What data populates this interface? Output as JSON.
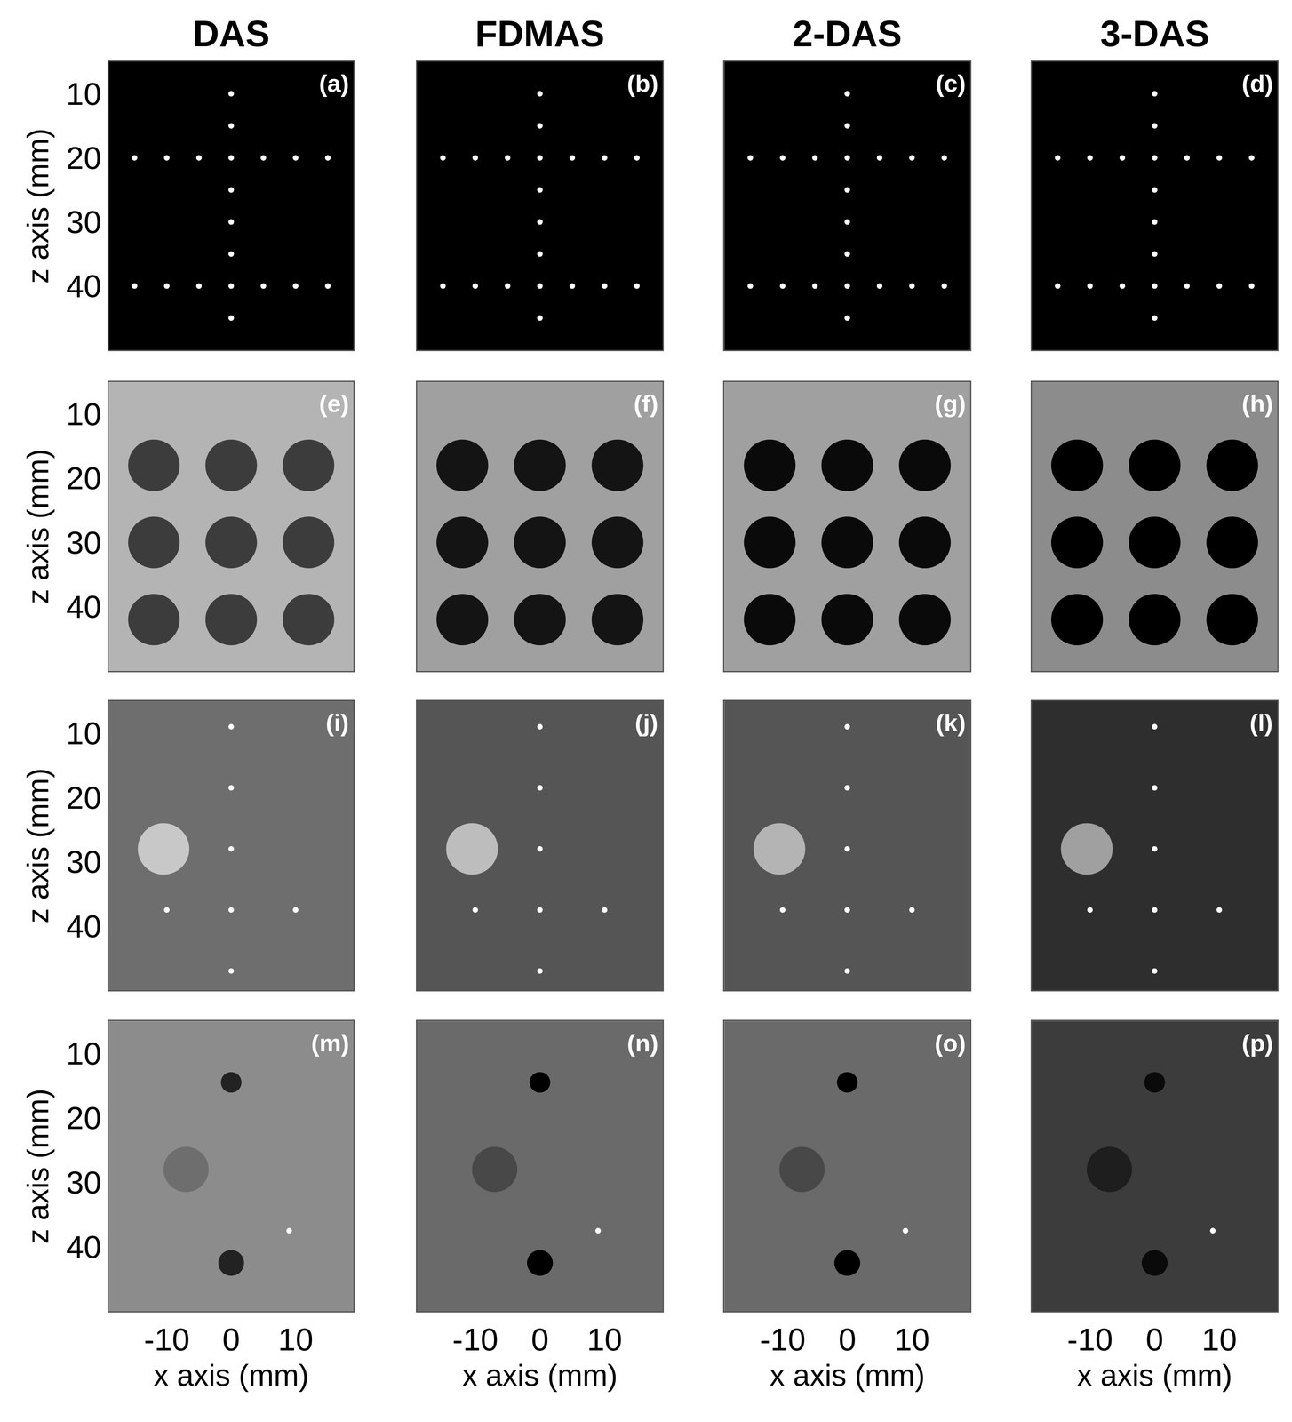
{
  "chart_data": [
    {
      "type": "image",
      "title": "DAS",
      "label": "(a)",
      "ylabel": "z axis (mm)",
      "xlim": [
        -19,
        19
      ],
      "ylim": [
        50,
        5
      ],
      "xticks": [
        -10,
        0,
        10
      ],
      "yticks": [
        10,
        20,
        30,
        40
      ],
      "tick_labels": "y",
      "color": "#000000",
      "series": [
        {
          "type": "scatter",
          "color": "#ffffff",
          "x": [
            0,
            0,
            0,
            0,
            0,
            0,
            0,
            0,
            -15,
            -10,
            -5,
            5,
            10,
            15,
            -15,
            -10,
            -5,
            5,
            10,
            15
          ],
          "values": [
            10,
            15,
            20,
            25,
            30,
            35,
            40,
            45,
            20,
            20,
            20,
            20,
            20,
            20,
            40,
            40,
            40,
            40,
            40,
            40
          ]
        }
      ]
    },
    {
      "type": "image",
      "title": "FDMAS",
      "label": "(b)",
      "xlim": [
        -19,
        19
      ],
      "ylim": [
        50,
        5
      ],
      "xticks": [
        -10,
        0,
        10
      ],
      "yticks": [
        10,
        20,
        30,
        40
      ],
      "tick_labels": false,
      "color": "#000000",
      "series": [
        {
          "type": "scatter",
          "color": "#ffffff",
          "x": [
            0,
            0,
            0,
            0,
            0,
            0,
            0,
            0,
            -15,
            -10,
            -5,
            5,
            10,
            15,
            -15,
            -10,
            -5,
            5,
            10,
            15
          ],
          "values": [
            10,
            15,
            20,
            25,
            30,
            35,
            40,
            45,
            20,
            20,
            20,
            20,
            20,
            20,
            40,
            40,
            40,
            40,
            40,
            40
          ]
        }
      ]
    },
    {
      "type": "image",
      "title": "2-DAS",
      "label": "(c)",
      "xlim": [
        -19,
        19
      ],
      "ylim": [
        50,
        5
      ],
      "xticks": [
        -10,
        0,
        10
      ],
      "yticks": [
        10,
        20,
        30,
        40
      ],
      "tick_labels": false,
      "color": "#000000",
      "series": [
        {
          "type": "scatter",
          "color": "#ffffff",
          "x": [
            0,
            0,
            0,
            0,
            0,
            0,
            0,
            0,
            -15,
            -10,
            -5,
            5,
            10,
            15,
            -15,
            -10,
            -5,
            5,
            10,
            15
          ],
          "values": [
            10,
            15,
            20,
            25,
            30,
            35,
            40,
            45,
            20,
            20,
            20,
            20,
            20,
            20,
            40,
            40,
            40,
            40,
            40,
            40
          ]
        }
      ]
    },
    {
      "type": "image",
      "title": "3-DAS",
      "label": "(d)",
      "xlim": [
        -19,
        19
      ],
      "ylim": [
        50,
        5
      ],
      "xticks": [
        -10,
        0,
        10
      ],
      "yticks": [
        10,
        20,
        30,
        40
      ],
      "tick_labels": false,
      "color": "#000000",
      "series": [
        {
          "type": "scatter",
          "color": "#ffffff",
          "x": [
            0,
            0,
            0,
            0,
            0,
            0,
            0,
            0,
            -15,
            -10,
            -5,
            5,
            10,
            15,
            -15,
            -10,
            -5,
            5,
            10,
            15
          ],
          "values": [
            10,
            15,
            20,
            25,
            30,
            35,
            40,
            45,
            20,
            20,
            20,
            20,
            20,
            20,
            40,
            40,
            40,
            40,
            40,
            40
          ]
        }
      ]
    },
    {
      "type": "image",
      "label": "(e)",
      "ylabel": "z axis (mm)",
      "xlim": [
        -19,
        19
      ],
      "ylim": [
        50,
        5
      ],
      "xticks": [
        -10,
        0,
        10
      ],
      "yticks": [
        10,
        20,
        30,
        40
      ],
      "tick_labels": "y",
      "color": "#b4b4b4",
      "series": [
        {
          "type": "circle",
          "color": "#3c3c3c",
          "x": [
            -12,
            0,
            12,
            -12,
            0,
            12,
            -12,
            0,
            12
          ],
          "values": [
            18,
            18,
            18,
            30,
            30,
            30,
            42,
            42,
            42
          ],
          "radius": [
            4,
            4,
            4,
            4,
            4,
            4,
            4,
            4,
            4
          ]
        }
      ]
    },
    {
      "type": "image",
      "label": "(f)",
      "xlim": [
        -19,
        19
      ],
      "ylim": [
        50,
        5
      ],
      "xticks": [
        -10,
        0,
        10
      ],
      "yticks": [
        10,
        20,
        30,
        40
      ],
      "tick_labels": false,
      "color": "#a0a0a0",
      "series": [
        {
          "type": "circle",
          "color": "#141414",
          "x": [
            -12,
            0,
            12,
            -12,
            0,
            12,
            -12,
            0,
            12
          ],
          "values": [
            18,
            18,
            18,
            30,
            30,
            30,
            42,
            42,
            42
          ],
          "radius": [
            4,
            4,
            4,
            4,
            4,
            4,
            4,
            4,
            4
          ]
        }
      ]
    },
    {
      "type": "image",
      "label": "(g)",
      "xlim": [
        -19,
        19
      ],
      "ylim": [
        50,
        5
      ],
      "xticks": [
        -10,
        0,
        10
      ],
      "yticks": [
        10,
        20,
        30,
        40
      ],
      "tick_labels": false,
      "color": "#a0a0a0",
      "series": [
        {
          "type": "circle",
          "color": "#0a0a0a",
          "x": [
            -12,
            0,
            12,
            -12,
            0,
            12,
            -12,
            0,
            12
          ],
          "values": [
            18,
            18,
            18,
            30,
            30,
            30,
            42,
            42,
            42
          ],
          "radius": [
            4,
            4,
            4,
            4,
            4,
            4,
            4,
            4,
            4
          ]
        }
      ]
    },
    {
      "type": "image",
      "label": "(h)",
      "xlim": [
        -19,
        19
      ],
      "ylim": [
        50,
        5
      ],
      "xticks": [
        -10,
        0,
        10
      ],
      "yticks": [
        10,
        20,
        30,
        40
      ],
      "tick_labels": false,
      "color": "#8c8c8c",
      "series": [
        {
          "type": "circle",
          "color": "#000000",
          "x": [
            -12,
            0,
            12,
            -12,
            0,
            12,
            -12,
            0,
            12
          ],
          "values": [
            18,
            18,
            18,
            30,
            30,
            30,
            42,
            42,
            42
          ],
          "radius": [
            4,
            4,
            4,
            4,
            4,
            4,
            4,
            4,
            4
          ]
        }
      ]
    },
    {
      "type": "image",
      "label": "(i)",
      "ylabel": "z axis (mm)",
      "xlim": [
        -19,
        19
      ],
      "ylim": [
        50,
        5
      ],
      "xticks": [
        -10,
        0,
        10
      ],
      "yticks": [
        10,
        20,
        30,
        40
      ],
      "tick_labels": "y",
      "color": "#6e6e6e",
      "series": [
        {
          "type": "circle",
          "color": "#c8c8c8",
          "x": [
            -10.5
          ],
          "values": [
            28
          ],
          "radius": [
            4
          ]
        },
        {
          "type": "scatter",
          "color": "#ffffff",
          "x": [
            0,
            0,
            0,
            -10,
            0,
            10,
            0
          ],
          "values": [
            9,
            18.5,
            28,
            37.5,
            37.5,
            37.5,
            47
          ]
        }
      ]
    },
    {
      "type": "image",
      "label": "(j)",
      "xlim": [
        -19,
        19
      ],
      "ylim": [
        50,
        5
      ],
      "xticks": [
        -10,
        0,
        10
      ],
      "yticks": [
        10,
        20,
        30,
        40
      ],
      "tick_labels": false,
      "color": "#555555",
      "series": [
        {
          "type": "circle",
          "color": "#bdbdbd",
          "x": [
            -10.5
          ],
          "values": [
            28
          ],
          "radius": [
            4
          ]
        },
        {
          "type": "scatter",
          "color": "#ffffff",
          "x": [
            0,
            0,
            0,
            -10,
            0,
            10,
            0
          ],
          "values": [
            9,
            18.5,
            28,
            37.5,
            37.5,
            37.5,
            47
          ]
        }
      ]
    },
    {
      "type": "image",
      "label": "(k)",
      "xlim": [
        -19,
        19
      ],
      "ylim": [
        50,
        5
      ],
      "xticks": [
        -10,
        0,
        10
      ],
      "yticks": [
        10,
        20,
        30,
        40
      ],
      "tick_labels": false,
      "color": "#555555",
      "series": [
        {
          "type": "circle",
          "color": "#b4b4b4",
          "x": [
            -10.5
          ],
          "values": [
            28
          ],
          "radius": [
            4
          ]
        },
        {
          "type": "scatter",
          "color": "#ffffff",
          "x": [
            0,
            0,
            0,
            -10,
            0,
            10,
            0
          ],
          "values": [
            9,
            18.5,
            28,
            37.5,
            37.5,
            37.5,
            47
          ]
        }
      ]
    },
    {
      "type": "image",
      "label": "(l)",
      "xlim": [
        -19,
        19
      ],
      "ylim": [
        50,
        5
      ],
      "xticks": [
        -10,
        0,
        10
      ],
      "yticks": [
        10,
        20,
        30,
        40
      ],
      "tick_labels": false,
      "color": "#2e2e2e",
      "series": [
        {
          "type": "circle",
          "color": "#a0a0a0",
          "x": [
            -10.5
          ],
          "values": [
            28
          ],
          "radius": [
            4
          ]
        },
        {
          "type": "scatter",
          "color": "#ffffff",
          "x": [
            0,
            0,
            0,
            -10,
            0,
            10,
            0
          ],
          "values": [
            9,
            18.5,
            28,
            37.5,
            37.5,
            37.5,
            47
          ]
        }
      ]
    },
    {
      "type": "image",
      "label": "(m)",
      "ylabel": "z axis (mm)",
      "xlabel": "x axis (mm)",
      "xlim": [
        -19,
        19
      ],
      "ylim": [
        50,
        5
      ],
      "xticks": [
        -10,
        0,
        10
      ],
      "yticks": [
        10,
        20,
        30,
        40
      ],
      "tick_labels": true,
      "color": "#8c8c8c",
      "series": [
        {
          "type": "circle",
          "color": "#6e6e6e",
          "x": [
            -7
          ],
          "values": [
            28
          ],
          "radius": [
            3.5
          ]
        },
        {
          "type": "circle",
          "color": "#222222",
          "x": [
            0,
            0
          ],
          "values": [
            14.5,
            42.5
          ],
          "radius": [
            1.6,
            2
          ]
        },
        {
          "type": "scatter",
          "color": "#ffffff",
          "x": [
            9
          ],
          "values": [
            37.5
          ]
        }
      ]
    },
    {
      "type": "image",
      "label": "(n)",
      "xlabel": "x axis (mm)",
      "xlim": [
        -19,
        19
      ],
      "ylim": [
        50,
        5
      ],
      "xticks": [
        -10,
        0,
        10
      ],
      "yticks": [
        10,
        20,
        30,
        40
      ],
      "tick_labels": "x",
      "color": "#6a6a6a",
      "series": [
        {
          "type": "circle",
          "color": "#484848",
          "x": [
            -7
          ],
          "values": [
            28
          ],
          "radius": [
            3.5
          ]
        },
        {
          "type": "circle",
          "color": "#000000",
          "x": [
            0,
            0
          ],
          "values": [
            14.5,
            42.5
          ],
          "radius": [
            1.6,
            2
          ]
        },
        {
          "type": "scatter",
          "color": "#ffffff",
          "x": [
            9
          ],
          "values": [
            37.5
          ]
        }
      ]
    },
    {
      "type": "image",
      "label": "(o)",
      "xlabel": "x axis (mm)",
      "xlim": [
        -19,
        19
      ],
      "ylim": [
        50,
        5
      ],
      "xticks": [
        -10,
        0,
        10
      ],
      "yticks": [
        10,
        20,
        30,
        40
      ],
      "tick_labels": "x",
      "color": "#6a6a6a",
      "series": [
        {
          "type": "circle",
          "color": "#484848",
          "x": [
            -7
          ],
          "values": [
            28
          ],
          "radius": [
            3.5
          ]
        },
        {
          "type": "circle",
          "color": "#000000",
          "x": [
            0,
            0
          ],
          "values": [
            14.5,
            42.5
          ],
          "radius": [
            1.6,
            2
          ]
        },
        {
          "type": "scatter",
          "color": "#ffffff",
          "x": [
            9
          ],
          "values": [
            37.5
          ]
        }
      ]
    },
    {
      "type": "image",
      "label": "(p)",
      "xlabel": "x axis (mm)",
      "xlim": [
        -19,
        19
      ],
      "ylim": [
        50,
        5
      ],
      "xticks": [
        -10,
        0,
        10
      ],
      "yticks": [
        10,
        20,
        30,
        40
      ],
      "tick_labels": "x",
      "color": "#3c3c3c",
      "series": [
        {
          "type": "circle",
          "color": "#1e1e1e",
          "x": [
            -7
          ],
          "values": [
            28
          ],
          "radius": [
            3.5
          ]
        },
        {
          "type": "circle",
          "color": "#0a0a0a",
          "x": [
            0,
            0
          ],
          "values": [
            14.5,
            42.5
          ],
          "radius": [
            1.6,
            2
          ]
        },
        {
          "type": "scatter",
          "color": "#ffffff",
          "x": [
            9
          ],
          "values": [
            37.5
          ]
        }
      ]
    }
  ]
}
